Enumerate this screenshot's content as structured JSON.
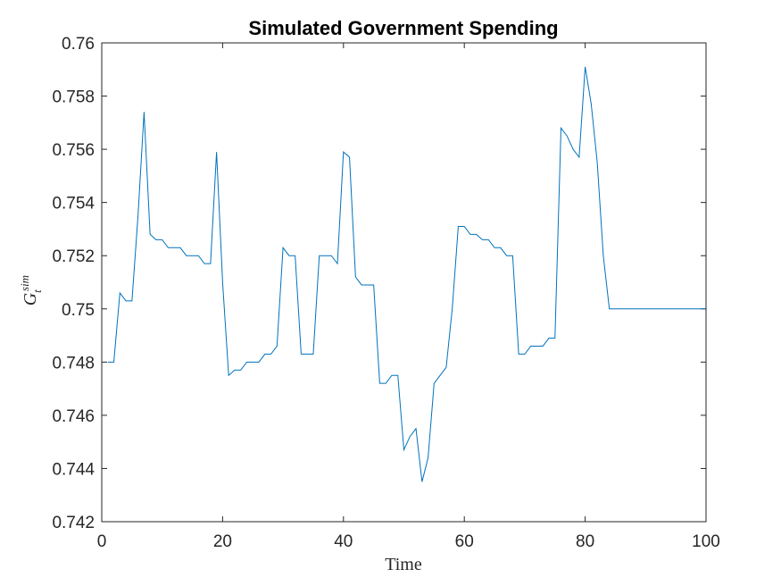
{
  "chart_data": {
    "type": "line",
    "title": "Simulated Government Spending",
    "xlabel": "Time",
    "ylabel_main": "G",
    "ylabel_sub": "t",
    "ylabel_sup": "sim",
    "xlim": [
      0,
      100
    ],
    "ylim": [
      0.742,
      0.76
    ],
    "xticks": [
      0,
      20,
      40,
      60,
      80,
      100
    ],
    "yticks": [
      0.742,
      0.744,
      0.746,
      0.748,
      0.75,
      0.752,
      0.754,
      0.756,
      0.758,
      0.76
    ],
    "ytick_labels": [
      "0.742",
      "0.744",
      "0.746",
      "0.748",
      "0.75",
      "0.752",
      "0.754",
      "0.756",
      "0.758",
      "0.76"
    ],
    "line_color": "#0072BD",
    "grid": false,
    "series": [
      {
        "x": [
          1,
          2,
          3,
          4,
          5,
          6,
          7,
          8,
          9,
          10,
          11,
          12,
          13,
          14,
          15,
          16,
          17,
          18,
          19,
          20,
          21,
          22,
          23,
          24,
          25,
          26,
          27,
          28,
          29,
          30,
          31,
          32,
          33,
          34,
          35,
          36,
          37,
          38,
          39,
          40,
          41,
          42,
          43,
          44,
          45,
          46,
          47,
          48,
          49,
          50,
          51,
          52,
          53,
          54,
          55,
          56,
          57,
          58,
          59,
          60,
          61,
          62,
          63,
          64,
          65,
          66,
          67,
          68,
          69,
          70,
          71,
          72,
          73,
          74,
          75,
          76,
          77,
          78,
          79,
          80,
          81,
          82,
          83,
          84,
          85,
          86,
          87,
          88,
          89,
          90,
          91,
          92,
          93,
          94,
          95,
          96,
          97,
          98,
          99,
          100
        ],
        "values": [
          0.748,
          0.748,
          0.7506,
          0.7503,
          0.7503,
          0.7535,
          0.7574,
          0.7528,
          0.7526,
          0.7526,
          0.7523,
          0.7523,
          0.7523,
          0.752,
          0.752,
          0.752,
          0.7517,
          0.7517,
          0.7559,
          0.751,
          0.7475,
          0.7477,
          0.7477,
          0.748,
          0.748,
          0.748,
          0.7483,
          0.7483,
          0.7486,
          0.7523,
          0.752,
          0.752,
          0.7483,
          0.7483,
          0.7483,
          0.752,
          0.752,
          0.752,
          0.7517,
          0.7559,
          0.7557,
          0.7512,
          0.7509,
          0.7509,
          0.7509,
          0.7472,
          0.7472,
          0.7475,
          0.7475,
          0.7447,
          0.7452,
          0.7455,
          0.7435,
          0.7444,
          0.7472,
          0.7475,
          0.7478,
          0.75,
          0.7531,
          0.7531,
          0.7528,
          0.7528,
          0.7526,
          0.7526,
          0.7523,
          0.7523,
          0.752,
          0.752,
          0.7483,
          0.7483,
          0.7486,
          0.7486,
          0.7486,
          0.7489,
          0.7489,
          0.7568,
          0.7565,
          0.756,
          0.7557,
          0.7591,
          0.7577,
          0.7555,
          0.752,
          0.75,
          0.75,
          0.75,
          0.75,
          0.75,
          0.75,
          0.75,
          0.75,
          0.75,
          0.75,
          0.75,
          0.75,
          0.75,
          0.75,
          0.75,
          0.75,
          0.75
        ]
      }
    ]
  }
}
